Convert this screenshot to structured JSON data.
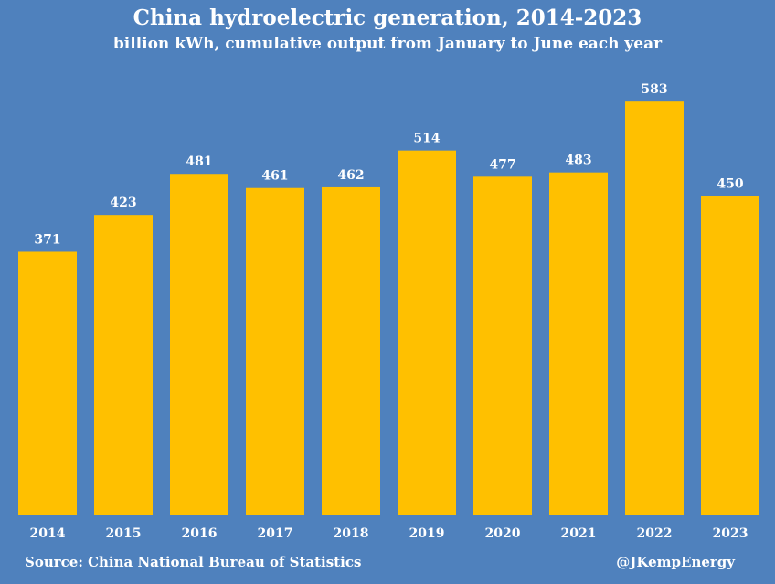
{
  "header": {
    "title": "China hydroelectric generation, 2014-2023",
    "subtitle": "billion kWh, cumulative output from January to June each year"
  },
  "footer": {
    "source": "Source: China National Bureau of Statistics",
    "credit": "@JKempEnergy"
  },
  "colors": {
    "background": "#4f81bd",
    "bar": "#ffc000",
    "text": "#ffffff"
  },
  "chart_data": {
    "type": "bar",
    "title": "China hydroelectric generation, 2014-2023",
    "subtitle": "billion kWh, cumulative output from January to June each year",
    "categories": [
      "2014",
      "2015",
      "2016",
      "2017",
      "2018",
      "2019",
      "2020",
      "2021",
      "2022",
      "2023"
    ],
    "values": [
      371,
      423,
      481,
      461,
      462,
      514,
      477,
      483,
      583,
      450
    ],
    "data_labels": [
      "371",
      "423",
      "481",
      "461",
      "462",
      "514",
      "477",
      "483",
      "583",
      "450"
    ],
    "xlabel": "",
    "ylabel": "",
    "ylim": [
      0,
      600
    ],
    "grid": false,
    "legend": "none"
  }
}
